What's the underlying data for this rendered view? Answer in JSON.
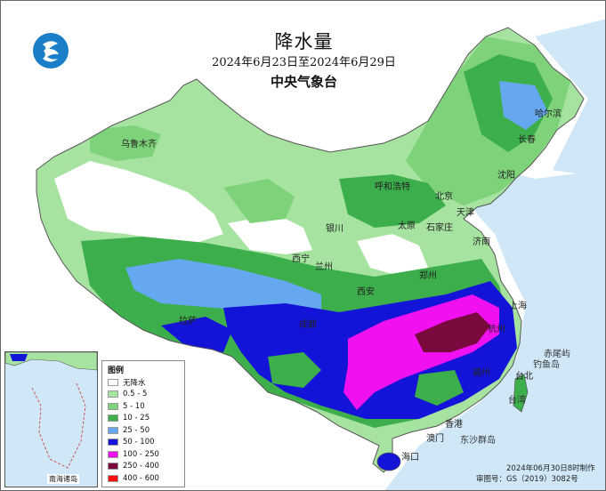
{
  "title": "降水量",
  "date_range": "2024年6月23日至2024年6月29日",
  "issuer": "中央气象台",
  "legend": {
    "title": "图例",
    "items": [
      {
        "label": "无降水",
        "color": "#ffffff"
      },
      {
        "label": "0.5 - 5",
        "color": "#a6e3a0"
      },
      {
        "label": "5 - 10",
        "color": "#7dd27a"
      },
      {
        "label": "10 - 25",
        "color": "#3cae4b"
      },
      {
        "label": "25 - 50",
        "color": "#66a8ef"
      },
      {
        "label": "50 - 100",
        "color": "#1414d8"
      },
      {
        "label": "100 - 250",
        "color": "#f010f0"
      },
      {
        "label": "250 - 400",
        "color": "#7a0a3e"
      },
      {
        "label": "400 - 600",
        "color": "#ff1010"
      }
    ]
  },
  "cities": {
    "urumqi": "乌鲁木齐",
    "hohhot": "呼和浩特",
    "beijing": "北京",
    "tianjin": "天津",
    "shijiazhuang": "石家庄",
    "taiyuan": "太原",
    "jinan": "济南",
    "yinchuan": "银川",
    "xining": "西宁",
    "lanzhou": "兰州",
    "xian": "西安",
    "zhengzhou": "郑州",
    "chengdu": "成都",
    "lhasa": "拉萨",
    "shanghai": "上海",
    "hangzhou": "杭州",
    "fuzhou": "福州",
    "taipei": "台北",
    "hongkong": "香港",
    "macau": "澳门",
    "haikou": "海口",
    "shenyang": "沈阳",
    "changchun": "长春",
    "harbin": "哈尔滨"
  },
  "islands": {
    "chiwei": "赤尾屿",
    "diaoyu": "钓鱼岛",
    "taiwan": "台湾",
    "dongsha": "东沙群岛",
    "nanhai": "南海诸岛"
  },
  "footer": {
    "made": "2024年06月30日8时制作",
    "approval": "审图号：GS（2019）3082号"
  },
  "colors": {
    "sea": "#cfe7f7",
    "border": "#666666"
  },
  "logo_icon": "cma-logo-icon"
}
